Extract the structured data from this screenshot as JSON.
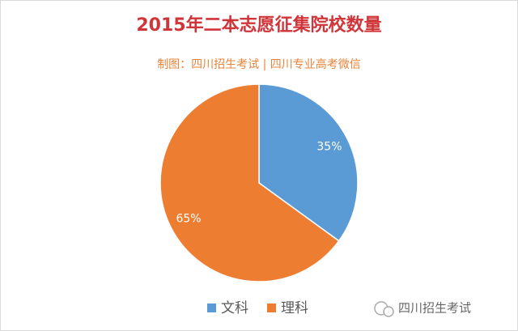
{
  "chart_data": {
    "type": "pie",
    "title": "2015年二本志愿征集院校数量",
    "subtitle": "制图：四川招生考试 | 四川专业高考微信",
    "categories": [
      "文科",
      "理科"
    ],
    "values": [
      35,
      65
    ],
    "value_labels": [
      "35%",
      "65%"
    ],
    "colors": [
      "#5b9bd5",
      "#ed7d31"
    ],
    "legend": "bottom"
  },
  "watermark": "四川招生考试"
}
